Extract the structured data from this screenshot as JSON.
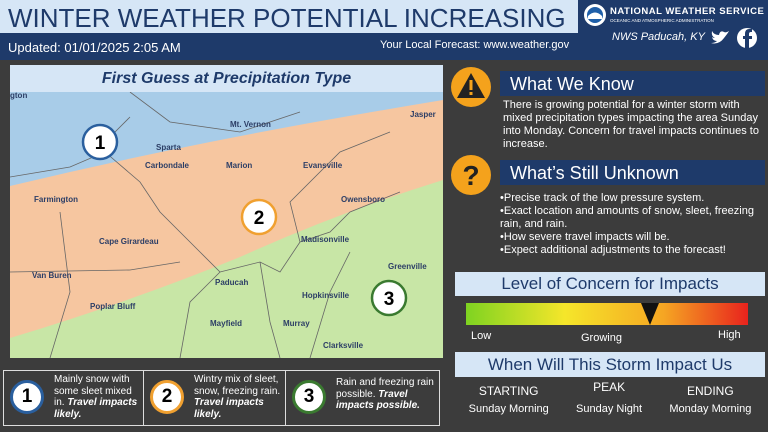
{
  "header": {
    "title": "WINTER WEATHER POTENTIAL INCREASING",
    "updated": "Updated: 01/01/2025 2:05 AM",
    "forecast": "Your Local Forecast: www.weather.gov",
    "agency": "NATIONAL WEATHER SERVICE",
    "agency_sub": "OCEANIC AND ATMOSPHERIC ADMINISTRATION",
    "office": "NWS Paducah, KY"
  },
  "map": {
    "title": "First Guess at Precipitation Type",
    "cities": [
      "gton",
      "Mt. Vernon",
      "Jasper",
      "Sparta",
      "Evansville",
      "Carbondale",
      "Marion",
      "Farmington",
      "Owensboro",
      "Cape Girardeau",
      "Madisonville",
      "Van Buren",
      "Greenville",
      "Paducah",
      "Hopkinsville",
      "Poplar Bluff",
      "Mayfield",
      "Murray",
      "Clarksville"
    ],
    "zones": [
      "1",
      "2",
      "3"
    ]
  },
  "legend": {
    "items": [
      {
        "number": "1",
        "text": "Mainly snow with some sleet mixed in.",
        "impact": "Travel impacts likely."
      },
      {
        "number": "2",
        "text": "Wintry mix of sleet, snow, freezing rain.",
        "impact": "Travel impacts likely."
      },
      {
        "number": "3",
        "text": "Rain and freezing rain possible.",
        "impact": "Travel impacts possible."
      }
    ]
  },
  "know": {
    "title": "What We Know",
    "text": "There is growing potential for a winter storm with mixed precipitation types impacting the area Sunday into Monday. Concern for travel impacts continues to increase."
  },
  "unknown": {
    "title": "What’s Still Unknown",
    "bullets": [
      "•Precise track of the low pressure system.",
      "•Exact location and amounts of snow, sleet, freezing rain, and rain.",
      "•How severe travel impacts will be.",
      "•Expect additional adjustments to the forecast!"
    ]
  },
  "concern": {
    "title": "Level of Concern for Impacts",
    "low": "Low",
    "growing": "Growing",
    "high": "High"
  },
  "timing": {
    "title": "When Will This Storm Impact Us",
    "columns": [
      {
        "label": "STARTING",
        "value": "Sunday Morning"
      },
      {
        "label": "PEAK",
        "value": "Sunday Night"
      },
      {
        "label": "ENDING",
        "value": "Monday Morning"
      }
    ]
  }
}
